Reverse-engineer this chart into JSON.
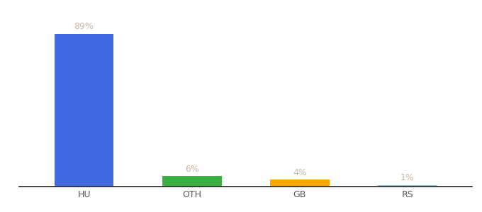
{
  "categories": [
    "HU",
    "OTH",
    "GB",
    "RS"
  ],
  "values": [
    89,
    6,
    4,
    1
  ],
  "labels": [
    "89%",
    "6%",
    "4%",
    "1%"
  ],
  "bar_colors": [
    "#4169E1",
    "#3CB043",
    "#FFA500",
    "#87CEEB"
  ],
  "background_color": "#ffffff",
  "ylim": [
    0,
    100
  ],
  "label_fontsize": 9,
  "tick_fontsize": 9,
  "label_color": "#c8b8a8"
}
